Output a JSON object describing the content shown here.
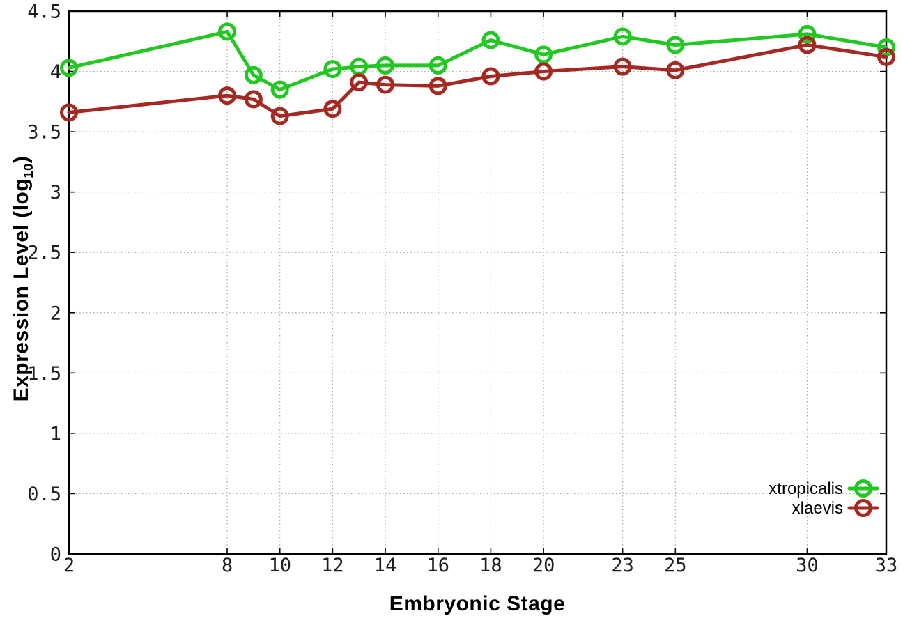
{
  "figure": {
    "xlabel": "Embryonic Stage",
    "ylabel_prefix": "Expression Level (log",
    "ylabel_sub": "10",
    "ylabel_suffix": ")"
  },
  "chart_data": {
    "type": "line",
    "title": "",
    "xlabel": "Embryonic Stage",
    "ylabel": "Expression Level (log10)",
    "x": [
      2,
      8,
      9,
      10,
      12,
      13,
      14,
      16,
      18,
      20,
      23,
      25,
      30,
      33
    ],
    "series": [
      {
        "name": "xtropicalis",
        "color": "#22c822",
        "values": [
          4.03,
          4.33,
          3.97,
          3.85,
          4.02,
          4.04,
          4.05,
          4.05,
          4.26,
          4.14,
          4.29,
          4.22,
          4.31,
          4.2
        ]
      },
      {
        "name": "xlaevis",
        "color": "#a52821",
        "values": [
          3.66,
          3.8,
          3.77,
          3.63,
          3.69,
          3.91,
          3.89,
          3.88,
          3.96,
          4.0,
          4.04,
          4.01,
          4.22,
          4.12
        ]
      }
    ],
    "xlim": [
      2,
      33
    ],
    "ylim": [
      0,
      4.5
    ],
    "x_ticks": [
      2,
      8,
      10,
      12,
      14,
      16,
      18,
      20,
      23,
      25,
      30,
      33
    ],
    "y_ticks": [
      0,
      0.5,
      1,
      1.5,
      2,
      2.5,
      3,
      3.5,
      4,
      4.5
    ],
    "grid": true,
    "grid_style": "dotted",
    "grid_color": "#a8a8a8",
    "axis_color": "#000000",
    "marker": "open-circle",
    "marker_radius": 10.5,
    "line_width": 5,
    "legend_position": "inside-bottom-right",
    "legend_order": [
      "xtropicalis",
      "xlaevis"
    ]
  }
}
